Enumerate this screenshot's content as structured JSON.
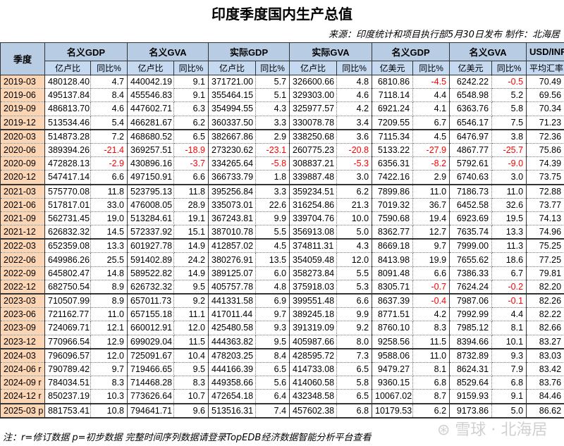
{
  "title": "印度季度国内生产总值",
  "source": "来源：印度统计和项目执行部5月30日发布  制作：北海居",
  "headers": {
    "quarter": "季度",
    "groups": [
      "名义GDP",
      "名义GVA",
      "实际GDP",
      "实际GVA",
      "名义GDP",
      "名义GVA",
      "USD/INR"
    ],
    "sub": [
      "亿卢比",
      "同比%",
      "亿卢比",
      "同比%",
      "亿卢比",
      "同比%",
      "亿卢比",
      "同比%",
      "亿美元",
      "同比%",
      "亿美元",
      "同比%",
      "平均汇率"
    ]
  },
  "rows": [
    [
      "2019-03",
      "480128.40",
      "4.7",
      "440042.19",
      "9.1",
      "371721.00",
      "5.7",
      "326600.66",
      "4.8",
      "6810.86",
      "-4.5",
      "6242.22",
      "-0.5",
      "70.49"
    ],
    [
      "2019-06",
      "495137.84",
      "8.4",
      "455546.83",
      "9.1",
      "355464.15",
      "5.1",
      "329303.00",
      "4.6",
      "7118.14",
      "4.4",
      "6548.98",
      "5.2",
      "69.56"
    ],
    [
      "2019-09",
      "486813.70",
      "4.6",
      "447602.71",
      "6.3",
      "354994.55",
      "4.3",
      "325977.57",
      "4.2",
      "6921.24",
      "4.1",
      "6363.76",
      "5.8",
      "70.34"
    ],
    [
      "2019-12",
      "513534.46",
      "5.4",
      "466281.67",
      "6.2",
      "360337.50",
      "3.3",
      "330078.78",
      "3.4",
      "7209.55",
      "6.7",
      "6546.17",
      "7.5",
      "71.23"
    ],
    [
      "2020-03",
      "514873.28",
      "7.2",
      "468680.52",
      "6.5",
      "382667.86",
      "2.9",
      "338250.68",
      "3.6",
      "7115.34",
      "4.5",
      "6476.97",
      "3.8",
      "72.36"
    ],
    [
      "2020-06",
      "389394.26",
      "-21.4",
      "369257.51",
      "-18.9",
      "273230.62",
      "-23.1",
      "260775.23",
      "-20.8",
      "5133.22",
      "-27.9",
      "4867.77",
      "-25.7",
      "75.86"
    ],
    [
      "2020-09",
      "472828.13",
      "-2.9",
      "430896.16",
      "-3.7",
      "334265.64",
      "-5.8",
      "308837.21",
      "-5.3",
      "6356.31",
      "-8.2",
      "5792.61",
      "-9.0",
      "74.39"
    ],
    [
      "2020-12",
      "547417.14",
      "6.6",
      "497150.91",
      "6.6",
      "366733.79",
      "1.8",
      "339887.48",
      "3.0",
      "7422.16",
      "2.9",
      "6740.63",
      "3.0",
      "73.75"
    ],
    [
      "2021-03",
      "575770.08",
      "11.8",
      "523795.13",
      "11.8",
      "395256.84",
      "3.3",
      "359234.51",
      "6.2",
      "7899.86",
      "11.0",
      "7186.73",
      "11.0",
      "72.88"
    ],
    [
      "2021-06",
      "517817.01",
      "33.0",
      "476008.05",
      "28.9",
      "335073.01",
      "22.6",
      "316254.86",
      "21.3",
      "7019.32",
      "36.7",
      "6452.58",
      "32.6",
      "73.77"
    ],
    [
      "2021-09",
      "562731.45",
      "19.0",
      "513284.61",
      "19.1",
      "367243.81",
      "9.9",
      "339704.76",
      "10.0",
      "7590.68",
      "19.4",
      "6923.69",
      "19.5",
      "74.13"
    ],
    [
      "2021-12",
      "626832.32",
      "14.5",
      "572337.92",
      "15.1",
      "387010.78",
      "5.5",
      "356913.08",
      "5.0",
      "8362.77",
      "12.7",
      "7635.74",
      "13.3",
      "74.96"
    ],
    [
      "2022-03",
      "652359.08",
      "13.3",
      "601927.78",
      "14.9",
      "412857.02",
      "4.5",
      "374811.31",
      "4.3",
      "8669.18",
      "9.7",
      "7999.00",
      "11.3",
      "75.25"
    ],
    [
      "2022-06",
      "649986.26",
      "25.5",
      "591402.89",
      "24.2",
      "380276.91",
      "13.5",
      "354059.48",
      "12.0",
      "8413.98",
      "19.9",
      "7655.62",
      "18.6",
      "77.25"
    ],
    [
      "2022-09",
      "645802.47",
      "14.8",
      "589522.82",
      "14.9",
      "389125.07",
      "6.0",
      "358273.84",
      "5.5",
      "8091.48",
      "6.6",
      "7386.33",
      "6.7",
      "79.81"
    ],
    [
      "2022-12",
      "682750.54",
      "8.9",
      "626732.32",
      "9.5",
      "405757.78",
      "4.8",
      "375918.03",
      "5.3",
      "8305.71",
      "-0.7",
      "7624.24",
      "-0.2",
      "82.20"
    ],
    [
      "2023-03",
      "710507.99",
      "8.9",
      "657011.73",
      "9.2",
      "441331.58",
      "6.9",
      "399551.48",
      "6.6",
      "8637.39",
      "-0.4",
      "7987.06",
      "-0.1",
      "82.26"
    ],
    [
      "2023-06",
      "721162.77",
      "11.0",
      "657155.18",
      "11.1",
      "417011.44",
      "9.7",
      "389245.18",
      "9.9",
      "8771.51",
      "4.2",
      "7992.99",
      "4.4",
      "82.22"
    ],
    [
      "2023-09",
      "724069.71",
      "12.1",
      "660012.91",
      "12.0",
      "425480.58",
      "9.3",
      "391319.09",
      "9.2",
      "8760.10",
      "8.3",
      "7985.12",
      "8.1",
      "82.66"
    ],
    [
      "2023-12",
      "770966.54",
      "12.9",
      "699029.04",
      "11.5",
      "444363.82",
      "9.5",
      "405987.66",
      "8.0",
      "9258.56",
      "11.5",
      "8394.66",
      "10.1",
      "83.27"
    ],
    [
      "2024-03",
      "796096.57",
      "12.0",
      "725091.67",
      "10.4",
      "478203.25",
      "8.4",
      "428595.72",
      "7.3",
      "9588.06",
      "11.0",
      "8732.89",
      "9.3",
      "83.03"
    ],
    [
      "2024-06 r",
      "790789.42",
      "9.7",
      "719466.65",
      "9.5",
      "444166.39",
      "6.5",
      "414733.08",
      "6.5",
      "9479.27",
      "8.1",
      "8624.31",
      "7.9",
      "83.42"
    ],
    [
      "2024-09 r",
      "784034.51",
      "8.3",
      "714468.28",
      "8.3",
      "449358.66",
      "5.6",
      "414060.58",
      "5.8",
      "9360.15",
      "6.8",
      "8529.64",
      "6.8",
      "83.76"
    ],
    [
      "2024-12 r",
      "850237.19",
      "10.3",
      "773626.64",
      "10.7",
      "472654.18",
      "6.4",
      "432348.58",
      "6.5",
      "10067.02",
      "8.7",
      "9159.93",
      "9.1",
      "84.46"
    ],
    [
      "2025-03 p",
      "881753.41",
      "10.8",
      "794641.71",
      "9.6",
      "513516.31",
      "7.4",
      "457602.38",
      "6.8",
      "10179.53",
      "6.2",
      "9173.86",
      "5.0",
      "86.62"
    ]
  ],
  "note": "注：r=修订数据 p=初步数据 完整时间序列数据请登录TopEDB经济数据智能分析平台查看",
  "watermark": "雪球：北海居",
  "colors": {
    "header": "#b8cce4",
    "subheader": "#c5d9f1",
    "quarter": "#fcd5b4",
    "negative": "#ff0000"
  }
}
